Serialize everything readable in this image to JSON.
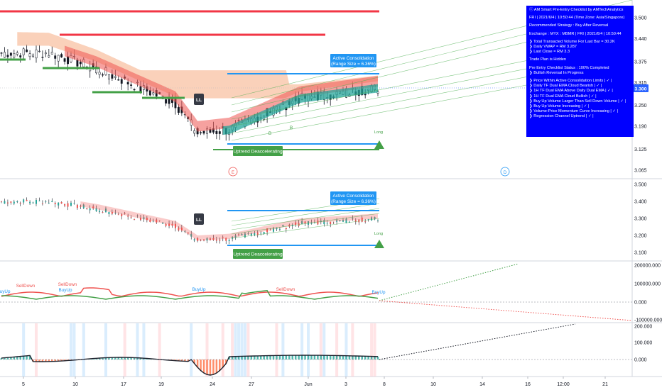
{
  "chart_data": [
    {
      "type": "candlestick",
      "panel": "main",
      "yaxis_ticks": [
        "3.500",
        "3.440",
        "3.375",
        "3.315",
        "3.250",
        "3.190",
        "3.125",
        "3.065"
      ],
      "ylim": [
        3.04,
        3.53
      ],
      "last_price": "3.300",
      "annotations": {
        "active_consolidation": "Active Consolidation\n(Range Size = 6.36%)",
        "uptrend_label": "Uptrend Deaccelerating",
        "long_label": "Long",
        "ll_label": "LL",
        "e_marker": "E",
        "d_marker": "D",
        "b_labels": [
          "B",
          "B"
        ]
      }
    },
    {
      "type": "candlestick",
      "panel": "second",
      "yaxis_ticks": [
        "3.500",
        "3.400",
        "3.300",
        "3.200",
        "3.100"
      ],
      "ylim": [
        3.06,
        3.53
      ],
      "annotations": {
        "active_consolidation": "Active Consolidation\n(Range Size = 6.36%)",
        "uptrend_label": "Uptrend Deaccelerating",
        "long_label": "Long",
        "ll_label": "LL"
      }
    },
    {
      "type": "line",
      "panel": "volume_oscillator",
      "yaxis_ticks": [
        "200000.000",
        "100000.000",
        "0.000",
        "-100000.000"
      ],
      "labels": [
        "BuyUp",
        "SellDown",
        "SellDown",
        "BuyUp",
        "BuyUp",
        "SellDown",
        "BuyUp"
      ]
    },
    {
      "type": "area",
      "panel": "histogram",
      "yaxis_ticks": [
        "200.000",
        "100.000",
        "0.000"
      ]
    }
  ],
  "x_axis_ticks": [
    "5",
    "10",
    "17",
    "19",
    "24",
    "27",
    "Jun",
    "3",
    "8",
    "10",
    "14",
    "16",
    "12:00",
    "21"
  ],
  "checklist": {
    "title": "ⓒ AM Smart Pre-Entry Checklist by AMTechAnalytics",
    "timestamp": "FRI | 2021/6/4 | 10:50:44 (Time Zone: Asia/Singapore)",
    "strategy": "Recommended Strategy : Buy After Reversal",
    "exchange": "Exchange : MYX : MBMR | FRI | 2021/6/4 | 10:50:44",
    "volume": "❯ Total Transacted Volume For Last Bar = 30.2K",
    "vwap": "❯ Daily VWAP = RM 3.287",
    "last_close": "❯ Last Close = RM 3.3",
    "trade_plan": "Trade Plan is Hidden",
    "status": "Pre Entry Checklist Status : 100% Completed",
    "reversal": "❯ Bullish Reversal In Progress",
    "items": [
      "❯ Price Within Active Consolidation Limits | ✓ |",
      "❯ Daily TF Dual EMA Cloud Bearish | ✓ |",
      "❯ 1H TF Dual EMA Above Daily Dual EMA | ✓ |",
      "❯ 1H TF Dual EMA Cloud Bullish | ✓ |",
      "❯ Buy Up Volume Larger Than Sell Down Volume | ✓ |",
      "❯ Buy Up Volume Increasing | ✓ |",
      "❯ Volume-Price Momentum Curve Increasing | ✓ |",
      "❯ Regression Channel Uptrend | ✓ |"
    ]
  },
  "colors": {
    "up": "#26a69a",
    "down": "#ef5350",
    "candle": "#131722",
    "blue": "#2196f3",
    "green": "#43a047",
    "red": "#f23645",
    "cloud_orange": "#f7b38c",
    "panel_blue": "#0000ff"
  }
}
